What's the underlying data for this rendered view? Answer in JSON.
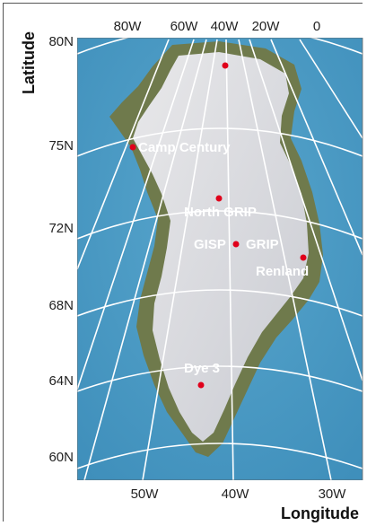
{
  "map": {
    "top_longitude_labels": [
      "80W",
      "60W",
      "40W",
      "20W",
      "0"
    ],
    "bottom_longitude_labels": [
      "50W",
      "40W",
      "30W"
    ],
    "latitude_labels": [
      "80N",
      "75N",
      "72N",
      "68N",
      "64N",
      "60N"
    ],
    "axis_latitude": "Latitude",
    "axis_longitude": "Longitude",
    "sites": [
      {
        "name": "Camp Century"
      },
      {
        "name": "North GRIP"
      },
      {
        "name": "GISP"
      },
      {
        "name": "GRIP"
      },
      {
        "name": "Renland"
      },
      {
        "name": "Dye 3"
      }
    ]
  },
  "colors": {
    "ocean": "#4f9cc4",
    "ice": "#dcdde2",
    "land": "#6f7a4c",
    "grid": "#ffffff",
    "site": "#e0001b"
  }
}
